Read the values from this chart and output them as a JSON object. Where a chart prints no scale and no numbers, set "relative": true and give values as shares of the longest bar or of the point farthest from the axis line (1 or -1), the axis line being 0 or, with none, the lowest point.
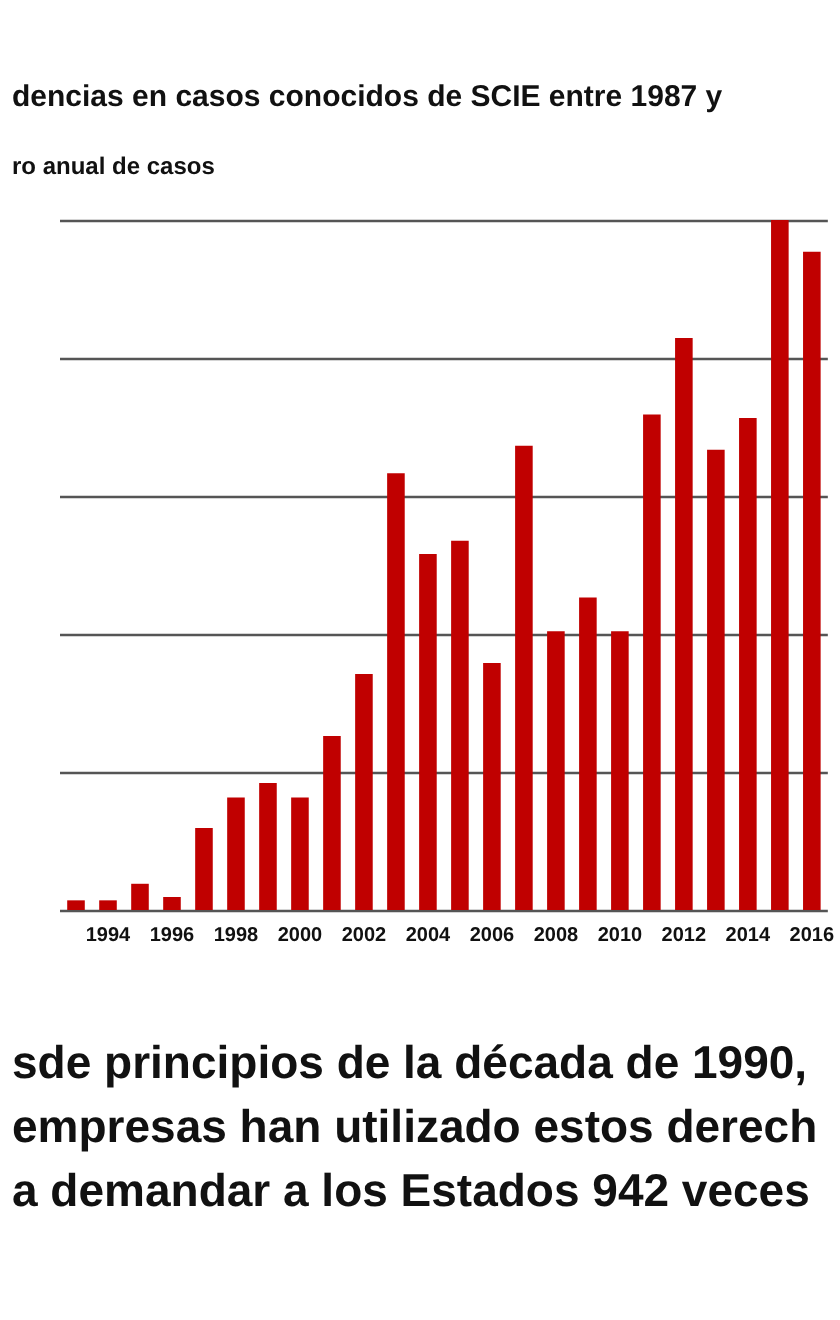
{
  "chart_data": {
    "type": "bar",
    "title": "dencias en casos conocidos de SCIE entre 1987 y",
    "ylabel": "ro anual de casos",
    "categories": [
      null,
      "1994",
      null,
      "1996",
      null,
      "1998",
      null,
      "2000",
      null,
      "2002",
      null,
      "2004",
      null,
      "2006",
      null,
      "2008",
      null,
      "2010",
      null,
      "2012",
      null,
      "2014",
      null,
      "2016"
    ],
    "values": [
      0.014,
      0.014,
      0.038,
      0.019,
      0.119,
      0.163,
      0.184,
      0.163,
      0.252,
      0.342,
      0.633,
      0.516,
      0.535,
      0.358,
      0.673,
      0.404,
      0.453,
      0.404,
      0.718,
      0.829,
      0.667,
      0.713,
      1,
      0.954
    ],
    "color": "#c00000",
    "relative": true,
    "grid": "y",
    "annotations": [
      "sde principios de la década de 1990, empresas han utilizado estos derech a demandar a los Estados 942 veces"
    ]
  }
}
